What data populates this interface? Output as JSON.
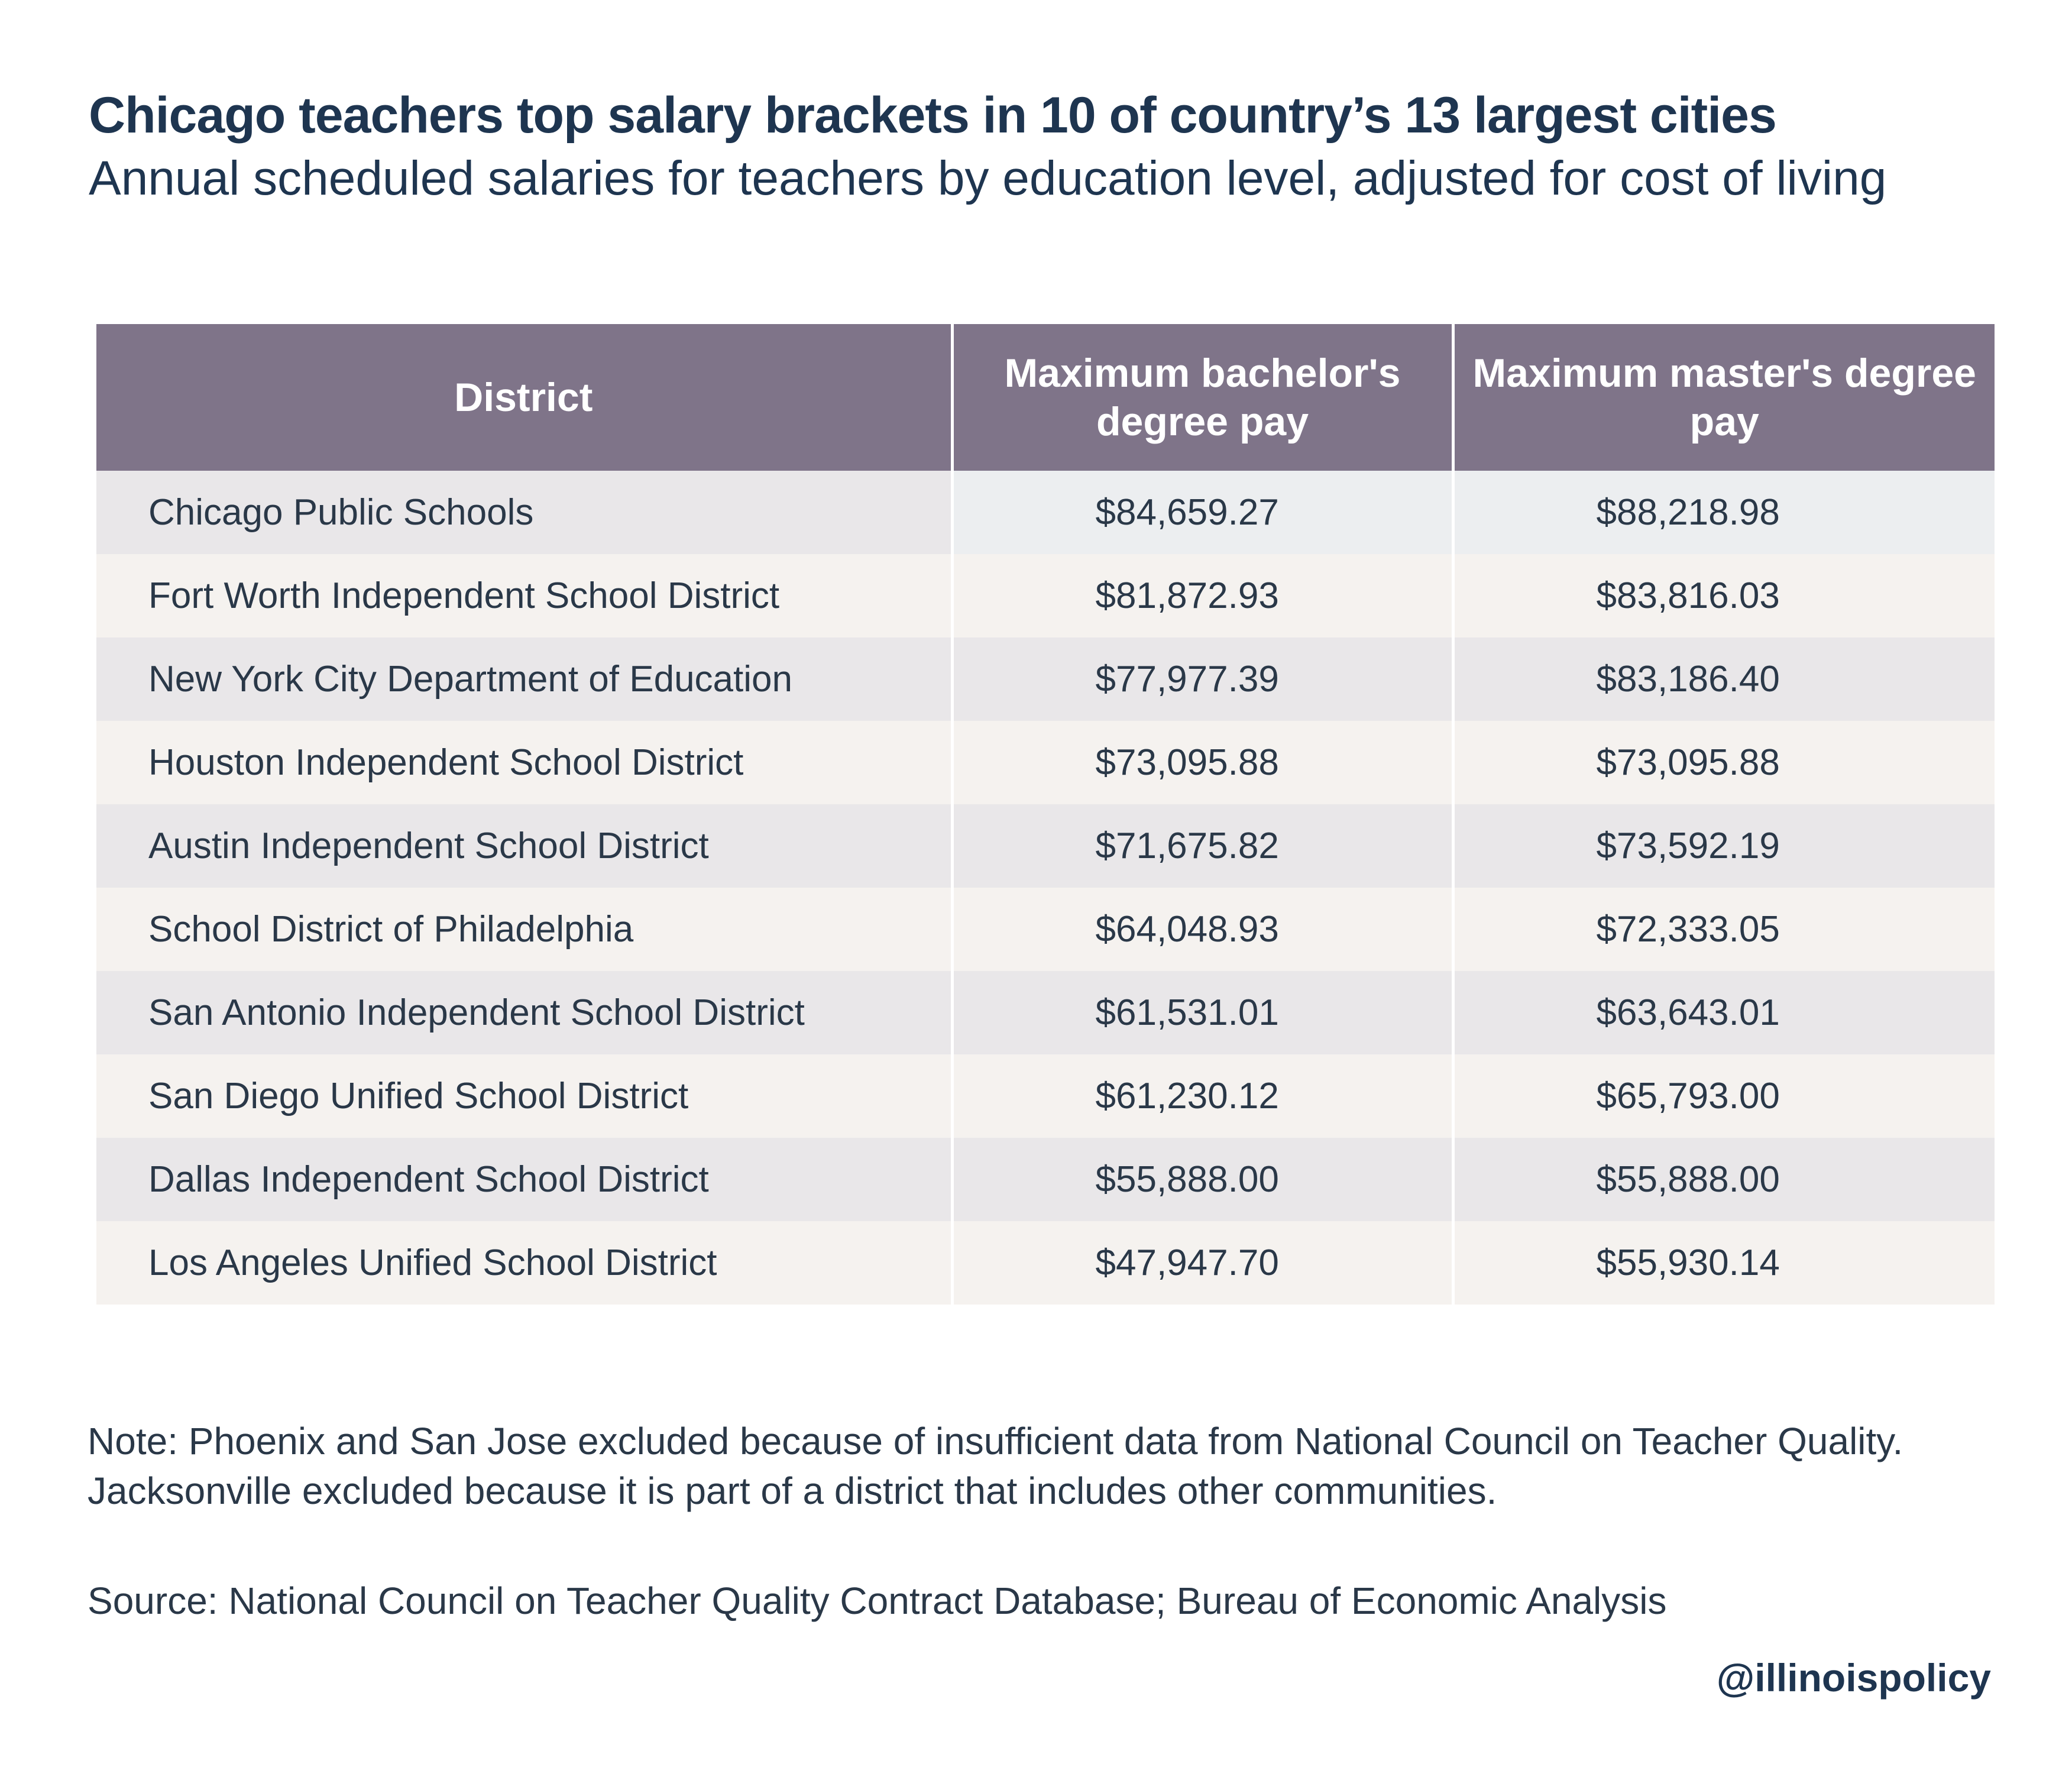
{
  "chart_data": {
    "type": "table",
    "title": "Chicago teachers top salary brackets in 10 of country’s 13 largest cities",
    "subtitle": "Annual scheduled salaries for teachers by education level, adjusted for cost of living",
    "columns": [
      "District",
      "Maximum bachelor's degree pay",
      "Maximum master's degree pay"
    ],
    "rows": [
      {
        "district": "Chicago Public Schools",
        "bachelors": "$84,659.27",
        "masters": "$88,218.98"
      },
      {
        "district": "Fort Worth Independent School District",
        "bachelors": "$81,872.93",
        "masters": "$83,816.03"
      },
      {
        "district": "New York City Department of Education",
        "bachelors": "$77,977.39",
        "masters": "$83,186.40"
      },
      {
        "district": "Houston Independent School District",
        "bachelors": "$73,095.88",
        "masters": "$73,095.88"
      },
      {
        "district": "Austin Independent School District",
        "bachelors": "$71,675.82",
        "masters": "$73,592.19"
      },
      {
        "district": "School District of Philadelphia",
        "bachelors": "$64,048.93",
        "masters": "$72,333.05"
      },
      {
        "district": "San Antonio Independent School District",
        "bachelors": "$61,531.01",
        "masters": "$63,643.01"
      },
      {
        "district": "San Diego Unified School District",
        "bachelors": "$61,230.12",
        "masters": "$65,793.00"
      },
      {
        "district": "Dallas Independent School District",
        "bachelors": "$55,888.00",
        "masters": "$55,888.00"
      },
      {
        "district": "Los Angeles Unified School District",
        "bachelors": "$47,947.70",
        "masters": "$55,930.14"
      }
    ],
    "note": "Note: Phoenix and San Jose excluded because of insufficient data from National Council on Teacher Quality. Jacksonville excluded because it is part of a district that includes other communities.",
    "source": "Source: National Council on Teacher Quality Contract Database; Bureau of Economic Analysis",
    "handle": "@illinoispolicy"
  },
  "colors": {
    "header_bg": "#7f7489",
    "header_text": "#ffffff",
    "row_odd_bg": "#e9e7e9",
    "row_even_bg": "#f5f2ef",
    "title_text": "#1e3550",
    "body_text": "#2a3848"
  }
}
